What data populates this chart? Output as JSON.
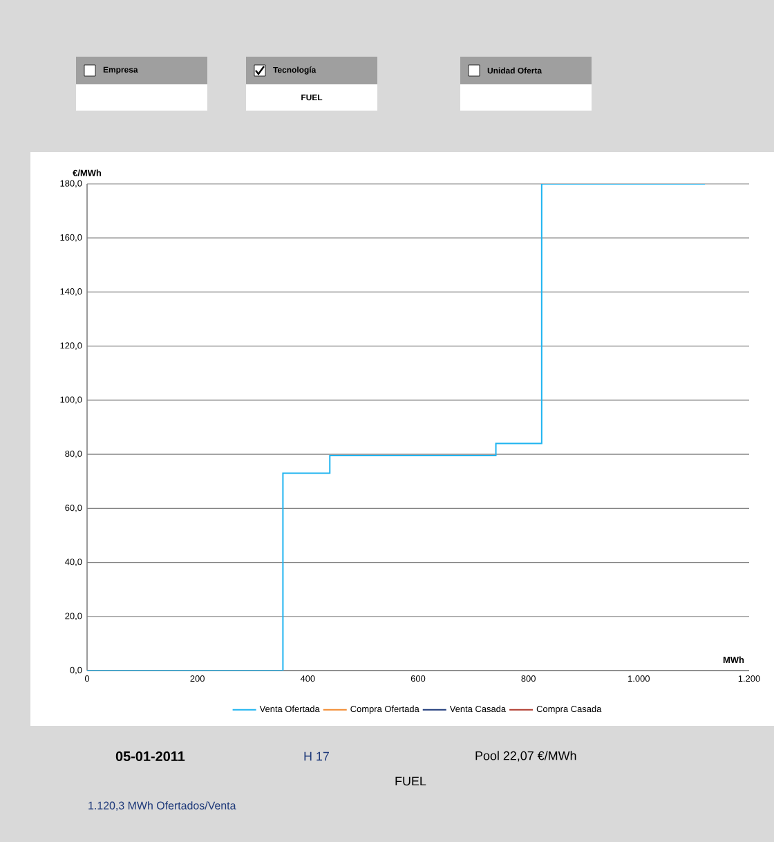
{
  "chart_data": {
    "type": "step",
    "xlabel": "MWh",
    "ylabel": "€/MWh",
    "x": [
      0,
      355,
      440,
      741,
      824,
      1120
    ],
    "series": [
      {
        "name": "Venta Ofertada",
        "color": "#1fb4f0",
        "values": [
          0,
          73,
          79.5,
          84,
          180,
          180
        ]
      },
      {
        "name": "Compra Ofertada",
        "color": "#f28a30",
        "values": [
          null,
          null,
          null,
          null,
          null,
          null
        ]
      },
      {
        "name": "Venta Casada",
        "color": "#1f3a7a",
        "values": [
          null,
          null,
          null,
          null,
          null,
          null
        ]
      },
      {
        "name": "Compra Casada",
        "color": "#b03a2e",
        "values": [
          null,
          null,
          null,
          null,
          null,
          null
        ]
      }
    ],
    "xlim": [
      0,
      1200
    ],
    "ylim": [
      0,
      180
    ],
    "xticks": [
      0,
      200,
      400,
      600,
      800,
      {
        "value": 1000,
        "label": "1.000"
      },
      {
        "value": 1200,
        "label": "1.200"
      }
    ],
    "yticks": [
      {
        "value": 0,
        "label": "0,0"
      },
      {
        "value": 20,
        "label": "20,0"
      },
      {
        "value": 40,
        "label": "40,0"
      },
      {
        "value": 60,
        "label": "60,0"
      },
      {
        "value": 80,
        "label": "80,0"
      },
      {
        "value": 100,
        "label": "100,0"
      },
      {
        "value": 120,
        "label": "120,0"
      },
      {
        "value": 140,
        "label": "140,0"
      },
      {
        "value": 160,
        "label": "160,0"
      },
      {
        "value": 180,
        "label": "180,0"
      }
    ],
    "grid": "y",
    "legend": "bottom",
    "annotations": [
      "Empresa",
      "Tecnología",
      "Unidad Oferta",
      "FUEL",
      "05-01-2011",
      "H 17",
      "Pool 22,07 €/MWh",
      "FUEL",
      "1.120,3 MWh Ofertados/Venta"
    ]
  }
}
